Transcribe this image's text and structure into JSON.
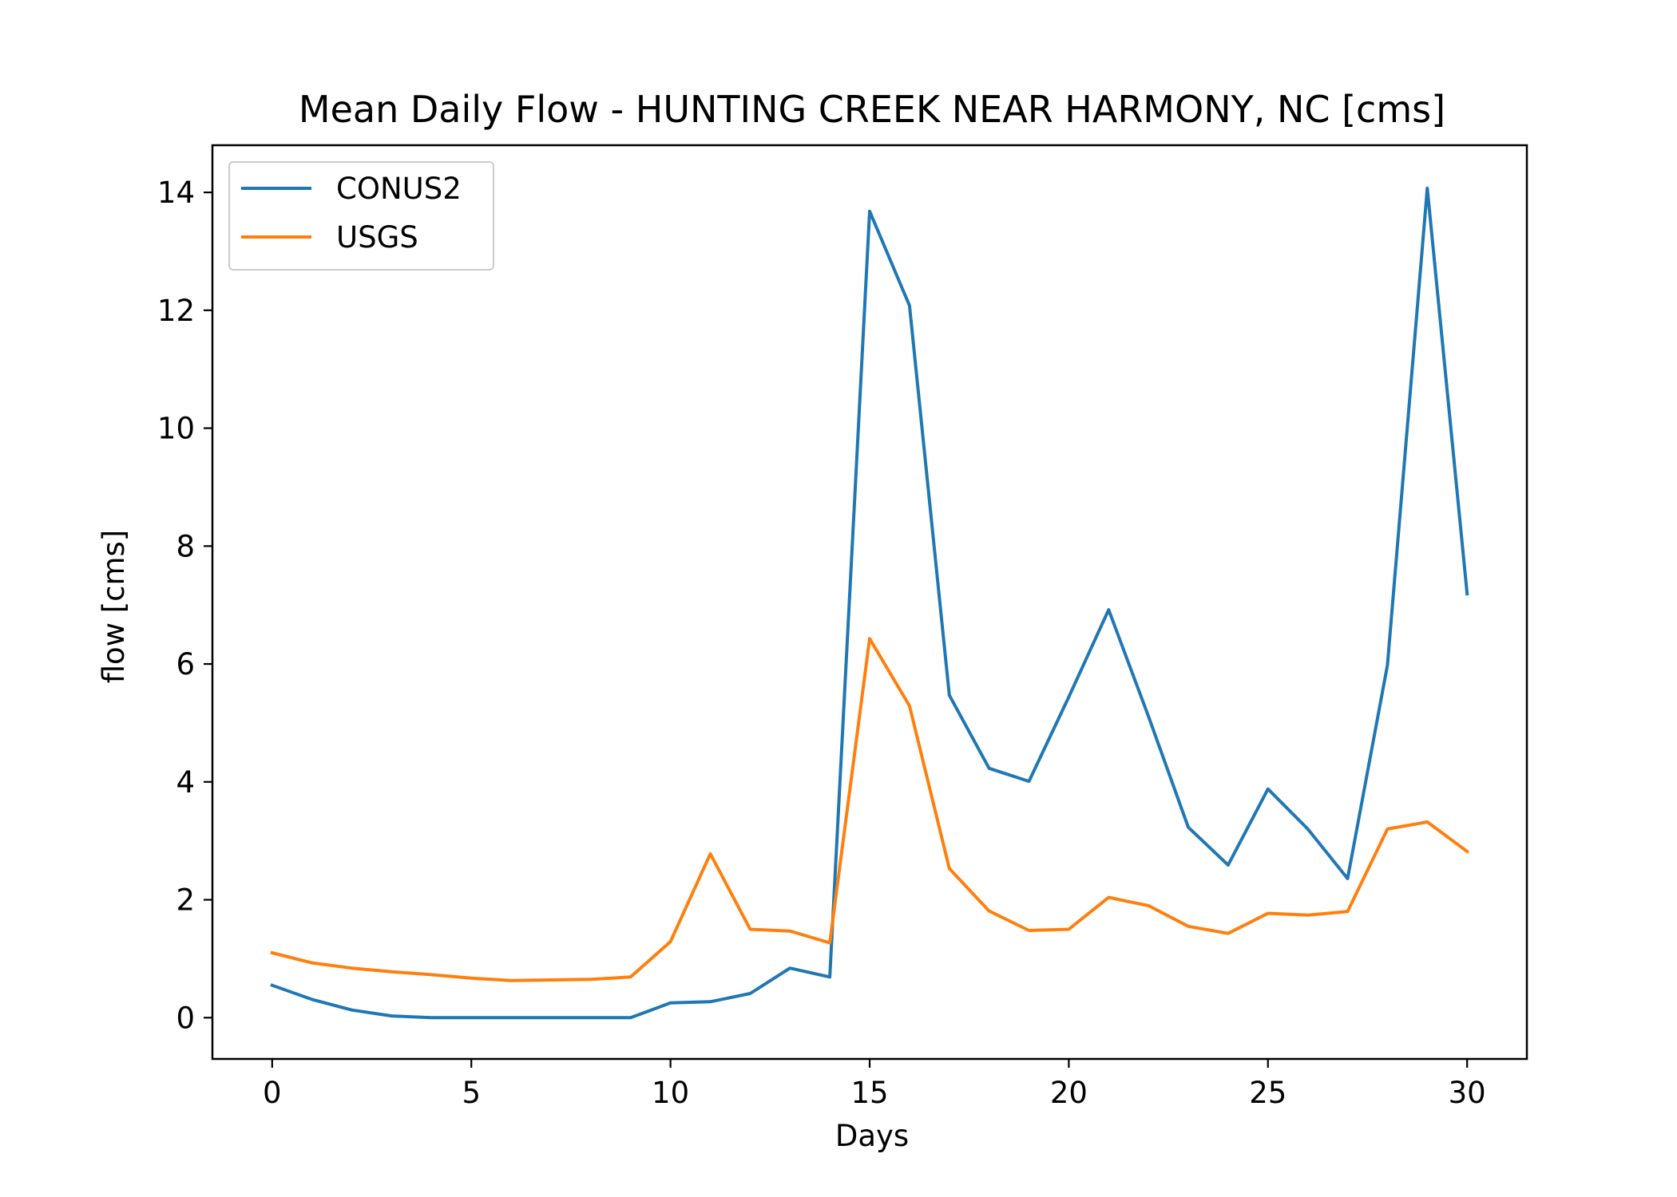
{
  "chart_data": {
    "type": "line",
    "title": "Mean Daily Flow - HUNTING CREEK NEAR HARMONY, NC [cms]",
    "xlabel": "Days",
    "ylabel": "flow [cms]",
    "xlim": [
      -1.5,
      31.5
    ],
    "ylim": [
      -0.7,
      14.8
    ],
    "xticks": [
      0,
      5,
      10,
      15,
      20,
      25,
      30
    ],
    "yticks": [
      0,
      2,
      4,
      6,
      8,
      10,
      12,
      14
    ],
    "grid": false,
    "legend_position": "upper left",
    "x": [
      0,
      1,
      2,
      3,
      4,
      5,
      6,
      7,
      8,
      9,
      10,
      11,
      12,
      13,
      14,
      15,
      16,
      17,
      18,
      19,
      20,
      21,
      22,
      23,
      24,
      25,
      26,
      27,
      28,
      29,
      30
    ],
    "series": [
      {
        "name": "CONUS2",
        "color": "#1f77b4",
        "values": [
          0.55,
          0.31,
          0.13,
          0.03,
          0.0,
          0.0,
          0.0,
          0.0,
          0.0,
          0.0,
          0.25,
          0.27,
          0.41,
          0.84,
          0.69,
          13.68,
          12.08,
          5.47,
          4.23,
          4.01,
          5.44,
          6.92,
          5.11,
          3.23,
          2.59,
          3.88,
          3.2,
          2.36,
          5.98,
          14.07,
          7.19
        ]
      },
      {
        "name": "USGS",
        "color": "#ff7f0e",
        "values": [
          1.1,
          0.93,
          0.84,
          0.78,
          0.73,
          0.67,
          0.63,
          0.64,
          0.65,
          0.69,
          1.29,
          2.78,
          1.5,
          1.47,
          1.27,
          6.43,
          5.29,
          2.53,
          1.81,
          1.48,
          1.5,
          2.04,
          1.9,
          1.55,
          1.43,
          1.77,
          1.74,
          1.8,
          3.2,
          3.32,
          2.82
        ]
      }
    ]
  }
}
